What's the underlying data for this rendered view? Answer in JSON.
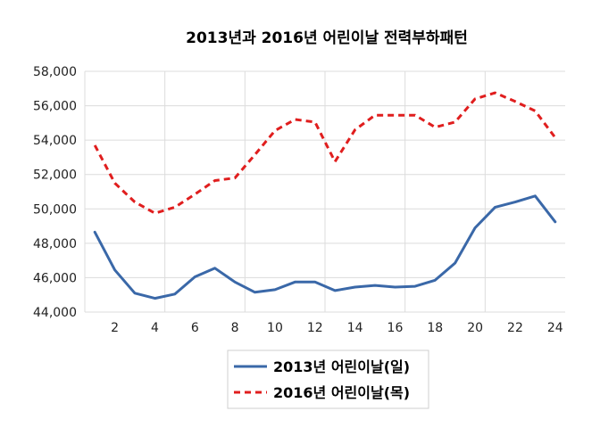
{
  "chart_data": {
    "type": "line",
    "title": "2013년과 2016년 어린이날 전력부하패턴",
    "x": [
      1,
      2,
      3,
      4,
      5,
      6,
      7,
      8,
      9,
      10,
      11,
      12,
      13,
      14,
      15,
      16,
      17,
      18,
      19,
      20,
      21,
      22,
      23,
      24
    ],
    "x_tick_labels": [
      "2",
      "4",
      "6",
      "8",
      "10",
      "12",
      "14",
      "16",
      "18",
      "20",
      "22",
      "24"
    ],
    "x_tick_values": [
      2,
      4,
      6,
      8,
      10,
      12,
      14,
      16,
      18,
      20,
      22,
      24
    ],
    "ylim": [
      44000,
      58000
    ],
    "y_tick_values": [
      44000,
      46000,
      48000,
      50000,
      52000,
      54000,
      56000,
      58000
    ],
    "y_tick_labels": [
      "44,000",
      "46,000",
      "48,000",
      "50,000",
      "52,000",
      "54,000",
      "56,000",
      "58,000"
    ],
    "grid": "vertical-and-horizontal",
    "legend_position": "bottom",
    "series": [
      {
        "name": "2013년 어린이날(일)",
        "color": "#3a68a8",
        "style": "solid",
        "values": [
          48650,
          46450,
          45100,
          44800,
          45050,
          46050,
          46550,
          45750,
          45150,
          45300,
          45750,
          45750,
          45250,
          45450,
          45550,
          45450,
          45500,
          45850,
          46850,
          48900,
          50100,
          50400,
          50750,
          49250
        ]
      },
      {
        "name": "2016년 어린이날(목)",
        "color": "#e01e1e",
        "style": "dashed",
        "values": [
          53700,
          51500,
          50400,
          49750,
          50100,
          50850,
          51650,
          51800,
          53150,
          54550,
          55200,
          55050,
          52750,
          54600,
          55450,
          55450,
          55450,
          54750,
          55050,
          56400,
          56750,
          56250,
          55700,
          54150
        ]
      }
    ]
  }
}
